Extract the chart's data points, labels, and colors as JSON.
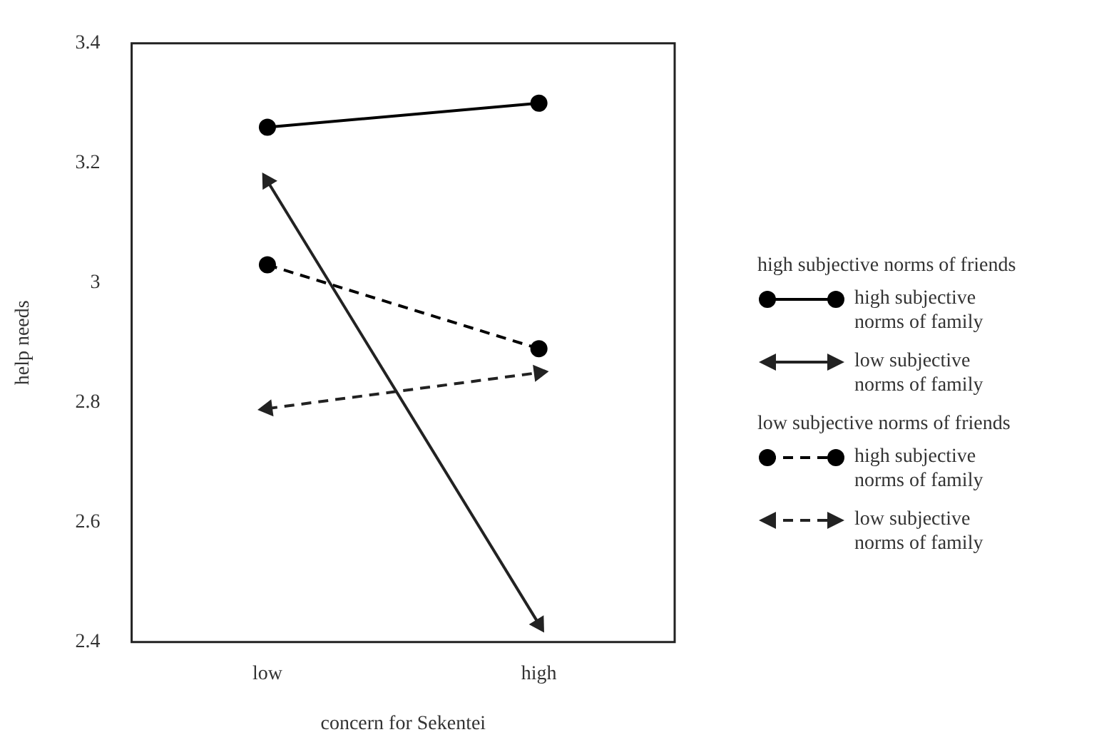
{
  "chart_data": {
    "type": "line",
    "xlabel": "concern for Sekentei",
    "ylabel": "help needs",
    "categories": [
      "low",
      "high"
    ],
    "ylim": [
      2.4,
      3.4
    ],
    "yticks": [
      2.4,
      2.6,
      2.8,
      {
        "value": 3,
        "label": "3"
      },
      3.2,
      3.4
    ],
    "grid": false,
    "legend": "right",
    "annotations": [
      "high subjective norms of friends",
      "low subjective norms of friends"
    ],
    "series": [
      {
        "name": "high subjective norms of family",
        "color": "#000000",
        "values": [
          3.26,
          3.3
        ],
        "marker": "circle",
        "line_style": "solid"
      },
      {
        "name": "low subjective norms of family",
        "color": "#222222",
        "values": [
          3.17,
          2.43
        ],
        "marker": "triangle",
        "line_style": "solid"
      },
      {
        "name": "high subjective norms of family",
        "color": "#000000",
        "values": [
          3.03,
          2.89
        ],
        "marker": "circle",
        "line_style": "dashed"
      },
      {
        "name": "low subjective norms of family",
        "color": "#222222",
        "values": [
          2.79,
          2.85
        ],
        "marker": "triangle",
        "line_style": "dashed"
      }
    ]
  }
}
